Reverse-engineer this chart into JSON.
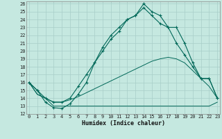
{
  "xlabel": "Humidex (Indice chaleur)",
  "bg_color": "#c5e8e0",
  "grid_color": "#a8cec8",
  "line_color": "#006858",
  "xmin": 0,
  "xmax": 23,
  "ymin": 12,
  "ymax": 26,
  "hours": [
    0,
    1,
    2,
    3,
    4,
    5,
    6,
    7,
    8,
    9,
    10,
    11,
    12,
    13,
    14,
    15,
    16,
    17,
    18,
    19,
    20,
    21,
    22,
    23
  ],
  "series_max": [
    16.0,
    15.0,
    13.5,
    12.8,
    12.7,
    13.3,
    14.5,
    16.0,
    18.5,
    20.5,
    22.0,
    23.0,
    24.0,
    24.5,
    26.0,
    25.0,
    24.5,
    23.0,
    23.0,
    21.0,
    18.5,
    16.5,
    16.5,
    14.0
  ],
  "series_cur": [
    16.0,
    15.0,
    14.0,
    13.5,
    13.5,
    14.0,
    15.5,
    17.0,
    18.5,
    20.0,
    21.5,
    22.5,
    24.0,
    24.5,
    25.5,
    24.5,
    23.5,
    23.0,
    21.0,
    19.5,
    18.0,
    16.5,
    16.5,
    14.0
  ],
  "series_mean": [
    16.0,
    14.5,
    14.0,
    13.5,
    13.5,
    13.8,
    14.2,
    14.7,
    15.2,
    15.7,
    16.2,
    16.7,
    17.2,
    17.7,
    18.2,
    18.7,
    19.0,
    19.2,
    19.0,
    18.5,
    17.5,
    16.5,
    15.5,
    14.0
  ],
  "series_min": [
    16.0,
    14.5,
    14.0,
    13.0,
    13.0,
    13.0,
    13.0,
    13.0,
    13.0,
    13.0,
    13.0,
    13.0,
    13.0,
    13.0,
    13.0,
    13.0,
    13.0,
    13.0,
    13.0,
    13.0,
    13.0,
    13.0,
    13.0,
    13.5
  ],
  "title_fontsize": 6,
  "xlabel_fontsize": 6,
  "tick_fontsize": 5
}
